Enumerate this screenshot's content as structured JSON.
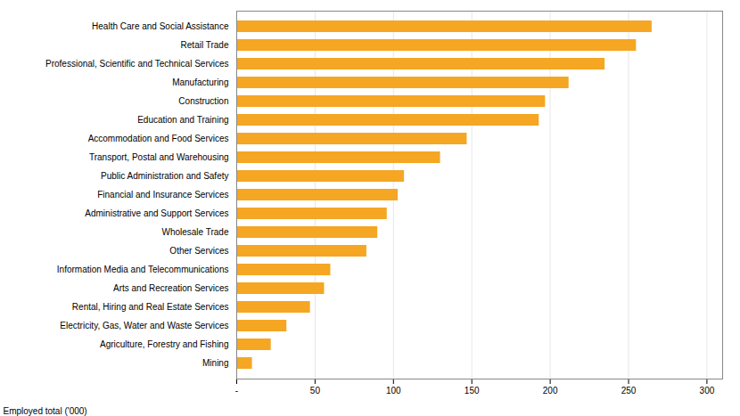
{
  "chart_data": {
    "type": "bar",
    "orientation": "horizontal",
    "categories": [
      "Health Care and Social Assistance",
      "Retail Trade",
      "Professional, Scientific and Technical Services",
      "Manufacturing",
      "Construction",
      "Education and Training",
      "Accommodation and Food Services",
      "Transport, Postal and Warehousing",
      "Public Administration and Safety",
      "Financial and Insurance Services",
      "Administrative and Support Services",
      "Wholesale Trade",
      "Other Services",
      "Information Media and Telecommunications",
      "Arts and Recreation Services",
      "Rental, Hiring and Real Estate Services",
      "Electricity, Gas, Water and Waste Services",
      "Agriculture, Forestry and Fishing",
      "Mining"
    ],
    "values": [
      265,
      255,
      235,
      212,
      197,
      193,
      147,
      130,
      107,
      103,
      96,
      90,
      83,
      60,
      56,
      47,
      32,
      22,
      10
    ],
    "color": "#F5A623",
    "xlabel": "Employed total ('000)",
    "xlim": [
      0,
      310
    ],
    "xticks": [
      {
        "value": 0,
        "label": "-"
      },
      50,
      100,
      150,
      200,
      250,
      300
    ],
    "grid": true
  }
}
